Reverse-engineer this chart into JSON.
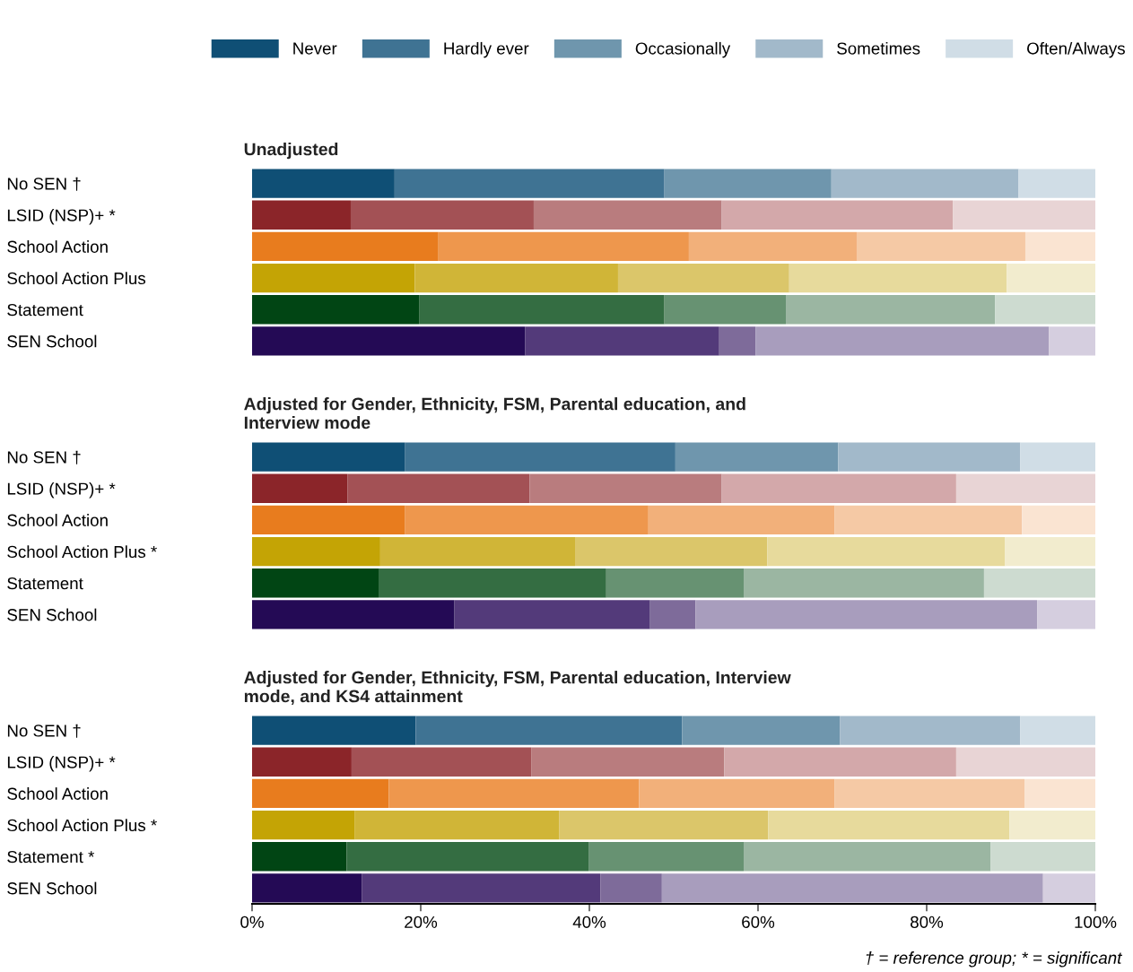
{
  "chart_data": [
    {
      "type": "bar",
      "orientation": "horizontal",
      "stacked": true,
      "title": "Unadjusted",
      "legend": "top",
      "tick_labels": "y",
      "xlim": [
        0,
        100
      ],
      "categories": [
        "No SEN †",
        "LSID (NSP)+ *",
        "School Action",
        "School Action Plus",
        "Statement",
        "SEN School"
      ],
      "series": [
        {
          "name": "Never",
          "color": "#0f4f75",
          "colors": [
            "#0f4f75",
            "#8b2529",
            "#e87c1e",
            "#c4a405",
            "#014514",
            "#240a55"
          ],
          "values": [
            16.9,
            11.7,
            22.1,
            19.3,
            19.8,
            32.4
          ]
        },
        {
          "name": "Hardly ever",
          "color": "#3f7393",
          "colors": [
            "#3f7393",
            "#a35155",
            "#ee974d",
            "#d0b537",
            "#346d42",
            "#533a7a"
          ],
          "values": [
            32.0,
            21.7,
            29.7,
            24.1,
            29.1,
            23.0
          ]
        },
        {
          "name": "Occasionally",
          "color": "#6f96ad",
          "colors": [
            "#6f96ad",
            "#b97c7e",
            "#f2b07a",
            "#dbc66a",
            "#679272",
            "#7e6b9a"
          ],
          "values": [
            19.8,
            22.3,
            19.9,
            20.3,
            14.4,
            4.3
          ]
        },
        {
          "name": "Sometimes",
          "color": "#a2b9ca",
          "colors": [
            "#a2b9ca",
            "#d3a8aa",
            "#f5c9a5",
            "#e7da9c",
            "#9bb6a2",
            "#a89dbd"
          ],
          "values": [
            22.2,
            27.4,
            20.0,
            25.8,
            24.8,
            34.8
          ]
        },
        {
          "name": "Often/Always",
          "color": "#d0dde6",
          "colors": [
            "#d0dde6",
            "#e8d4d5",
            "#fae4d2",
            "#f2ecce",
            "#cddbd0",
            "#d5cedf"
          ],
          "values": [
            9.1,
            16.9,
            8.3,
            10.5,
            11.9,
            5.5
          ]
        }
      ]
    },
    {
      "type": "bar",
      "orientation": "horizontal",
      "stacked": true,
      "title": "Adjusted for Gender, Ethnicity, FSM, Parental education, and\nInterview mode",
      "tick_labels": "y",
      "xlim": [
        0,
        100
      ],
      "categories": [
        "No SEN †",
        "LSID (NSP)+ *",
        "School Action",
        "School Action Plus *",
        "Statement",
        "SEN School"
      ],
      "series": [
        {
          "color": "#0f4f75",
          "colors": [
            "#0f4f75",
            "#8b2529",
            "#e87c1e",
            "#c4a405",
            "#014514",
            "#240a55"
          ],
          "values": [
            18.1,
            11.3,
            18.1,
            15.2,
            15.0,
            24.0
          ]
        },
        {
          "color": "#3f7393",
          "colors": [
            "#3f7393",
            "#a35155",
            "#ee974d",
            "#d0b537",
            "#346d42",
            "#533a7a"
          ],
          "values": [
            32.1,
            21.6,
            28.9,
            23.1,
            27.0,
            23.2
          ]
        },
        {
          "color": "#6f96ad",
          "colors": [
            "#6f96ad",
            "#b97c7e",
            "#f2b07a",
            "#dbc66a",
            "#679272",
            "#7e6b9a"
          ],
          "values": [
            19.3,
            22.8,
            22.1,
            22.8,
            16.3,
            5.4
          ]
        },
        {
          "color": "#a2b9ca",
          "colors": [
            "#a2b9ca",
            "#d3a8aa",
            "#f5c9a5",
            "#e7da9c",
            "#9bb6a2",
            "#a89dbd"
          ],
          "values": [
            21.6,
            27.8,
            22.2,
            28.2,
            28.5,
            40.5
          ]
        },
        {
          "color": "#d0dde6",
          "colors": [
            "#d0dde6",
            "#e8d4d5",
            "#fae4d2",
            "#f2ecce",
            "#cddbd0",
            "#d5cedf"
          ],
          "values": [
            8.9,
            16.5,
            8.7,
            10.7,
            13.2,
            6.9
          ]
        }
      ]
    },
    {
      "type": "bar",
      "orientation": "horizontal",
      "stacked": true,
      "title": "Adjusted for Gender, Ethnicity, FSM, Parental education, Interview\nmode, and KS4 attainment",
      "xlim": [
        0,
        100
      ],
      "xticks": [
        {
          "value": 0,
          "label": "0%"
        },
        {
          "value": 20,
          "label": "20%"
        },
        {
          "value": 40,
          "label": "40%"
        },
        {
          "value": 60,
          "label": "60%"
        },
        {
          "value": 80,
          "label": "80%"
        },
        {
          "value": 100,
          "label": "100%"
        }
      ],
      "annotations": [
        "† = reference group; * = significant"
      ],
      "categories": [
        "No SEN †",
        "LSID (NSP)+ *",
        "School Action",
        "School Action Plus *",
        "Statement *",
        "SEN School"
      ],
      "series": [
        {
          "color": "#0f4f75",
          "colors": [
            "#0f4f75",
            "#8b2529",
            "#e87c1e",
            "#c4a405",
            "#014514",
            "#240a55"
          ],
          "values": [
            19.4,
            11.8,
            16.2,
            12.2,
            11.2,
            13.0
          ]
        },
        {
          "color": "#3f7393",
          "colors": [
            "#3f7393",
            "#a35155",
            "#ee974d",
            "#d0b537",
            "#346d42",
            "#533a7a"
          ],
          "values": [
            31.6,
            21.3,
            29.7,
            24.2,
            28.7,
            28.3
          ]
        },
        {
          "color": "#6f96ad",
          "colors": [
            "#6f96ad",
            "#b97c7e",
            "#f2b07a",
            "#dbc66a",
            "#679272",
            "#7e6b9a"
          ],
          "values": [
            18.7,
            22.9,
            23.2,
            24.8,
            18.4,
            7.3
          ]
        },
        {
          "color": "#a2b9ca",
          "colors": [
            "#a2b9ca",
            "#d3a8aa",
            "#f5c9a5",
            "#e7da9c",
            "#9bb6a2",
            "#a89dbd"
          ],
          "values": [
            21.4,
            27.5,
            22.5,
            28.6,
            29.3,
            45.2
          ]
        },
        {
          "color": "#d0dde6",
          "colors": [
            "#d0dde6",
            "#e8d4d5",
            "#fae4d2",
            "#f2ecce",
            "#cddbd0",
            "#d5cedf"
          ],
          "values": [
            8.9,
            16.5,
            8.4,
            10.2,
            12.4,
            6.2
          ]
        }
      ]
    }
  ]
}
